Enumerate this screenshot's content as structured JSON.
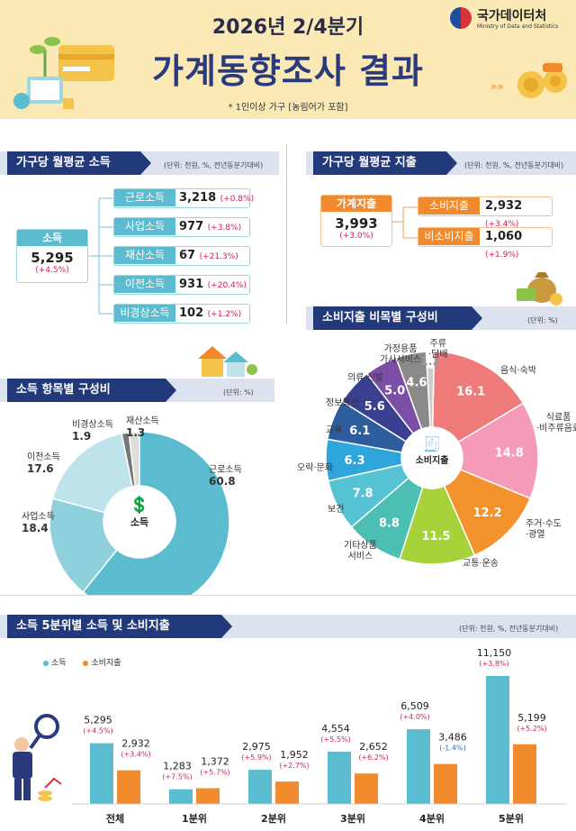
{
  "header": {
    "period": "2026년 2/4분기",
    "title": "가계동향조사 결과",
    "note": "* 1인이상 가구 [농림어가 포함]",
    "brand_name": "국가데이터처",
    "brand_sub": "Ministry of Data and Statistics"
  },
  "income": {
    "title": "가구당 월평균 소득",
    "unit": "(단위: 천원, %, 전년동분기대비)",
    "total": {
      "label": "소득",
      "value": "5,295",
      "rate": "(+4.5%)"
    },
    "items": [
      {
        "label": "근로소득",
        "value": "3,218",
        "rate": "(+0.8%)"
      },
      {
        "label": "사업소득",
        "value": "977",
        "rate": "(+3.8%)"
      },
      {
        "label": "재산소득",
        "value": "67",
        "rate": "(+21.3%)"
      },
      {
        "label": "이전소득",
        "value": "931",
        "rate": "(+20.4%)"
      },
      {
        "label": "비경상소득",
        "value": "102",
        "rate": "(+1.2%)"
      }
    ]
  },
  "expenditure": {
    "title": "가구당 월평균 지출",
    "unit": "(단위: 천원, %, 전년동분기대비)",
    "total": {
      "label": "가계지출",
      "value": "3,993",
      "rate": "(+3.0%)"
    },
    "items": [
      {
        "label": "소비지출",
        "value": "2,932",
        "rate": "(+3.4%)"
      },
      {
        "label": "비소비지출",
        "value": "1,060",
        "rate": "(+1.9%)"
      }
    ]
  },
  "income_comp": {
    "title": "소득 항목별 구성비",
    "unit": "(단위: %)",
    "center": "소득",
    "chart_data": {
      "type": "pie",
      "labels": [
        "근로소득",
        "사업소득",
        "이전소득",
        "비경상소득",
        "재산소득"
      ],
      "values": [
        60.8,
        18.4,
        17.6,
        1.9,
        1.3
      ],
      "value_labels": [
        "60.8",
        "18.4",
        "17.6",
        "1.9",
        "1.3"
      ],
      "colors": [
        "#5bbccf",
        "#8fd0dd",
        "#bfe3ea",
        "#dddddd",
        "#777777"
      ]
    }
  },
  "cons_comp": {
    "title": "소비지출 비목별 구성비",
    "unit": "(단위: %)",
    "center": "소비지출",
    "chart_data": {
      "type": "pie",
      "labels": [
        "음식·숙박",
        "식료품·비주류음료",
        "주거·수도·광열",
        "교통·운송",
        "기타상품서비스",
        "보건",
        "오락·문화",
        "교육",
        "정보통신",
        "의류·신발",
        "가정용품가사서비스",
        "주류·담배"
      ],
      "values": [
        16.1,
        14.8,
        12.2,
        11.5,
        8.8,
        7.8,
        6.3,
        6.1,
        5.6,
        5.0,
        4.6,
        1.2
      ],
      "value_labels": [
        "16.1",
        "14.8",
        "12.2",
        "11.5",
        "8.8",
        "7.8",
        "6.3",
        "6.1",
        "5.6",
        "5.0",
        "4.6",
        "1.2"
      ],
      "colors": [
        "#ee7a7a",
        "#f59ab8",
        "#f4922e",
        "#a6d23a",
        "#4bbfb1",
        "#55c3d3",
        "#2ea6dc",
        "#2e5d9e",
        "#3a3f8f",
        "#7b4fa6",
        "#8a8a8a",
        "#cccccc"
      ]
    },
    "outer_labels": {
      "food": "음식·숙박",
      "grocery": "식료품\n·비주류음료",
      "housing": "주거·수도\n·광열",
      "transport": "교통·운송",
      "etc": "기타상품\n서비스",
      "health": "보건",
      "culture": "오락·문화",
      "edu": "교육",
      "info": "정보통신",
      "cloth": "의류·신발",
      "home": "가정용품\n가사서비스",
      "liquor": "주류\n·담배"
    }
  },
  "quintile": {
    "title": "소득 5분위별 소득 및 소비지출",
    "unit": "(단위: 천원, %, 전년동분기대비)",
    "legend": {
      "income": "소득",
      "consumption": "소비지출"
    },
    "chart_data": {
      "type": "bar",
      "categories": [
        "전체",
        "1분위",
        "2분위",
        "3분위",
        "4분위",
        "5분위"
      ],
      "series": [
        {
          "name": "소득",
          "values": [
            5295,
            1283,
            2975,
            4554,
            6509,
            11150
          ],
          "value_labels": [
            "5,295",
            "1,283",
            "2,975",
            "4,554",
            "6,509",
            "11,150"
          ],
          "rates": [
            "(+4.5%)",
            "(+7.5%)",
            "(+5.9%)",
            "(+5.5%)",
            "(+4.0%)",
            "(+3.8%)"
          ],
          "color": "#5bbccf"
        },
        {
          "name": "소비지출",
          "values": [
            2932,
            1372,
            1952,
            2652,
            3486,
            5199
          ],
          "value_labels": [
            "2,932",
            "1,372",
            "1,952",
            "2,652",
            "3,486",
            "5,199"
          ],
          "rates": [
            "(+3.4%)",
            "(+5.7%)",
            "(+2.7%)",
            "(+6.2%)",
            "(-1.4%)",
            "(+5.2%)"
          ],
          "color": "#f08a2d"
        }
      ]
    }
  },
  "colors": {
    "navy": "#233a7a",
    "teal": "#5bbccf",
    "orange": "#f08a2d",
    "pink": "#d81b60",
    "cream": "#fbe9b5"
  }
}
